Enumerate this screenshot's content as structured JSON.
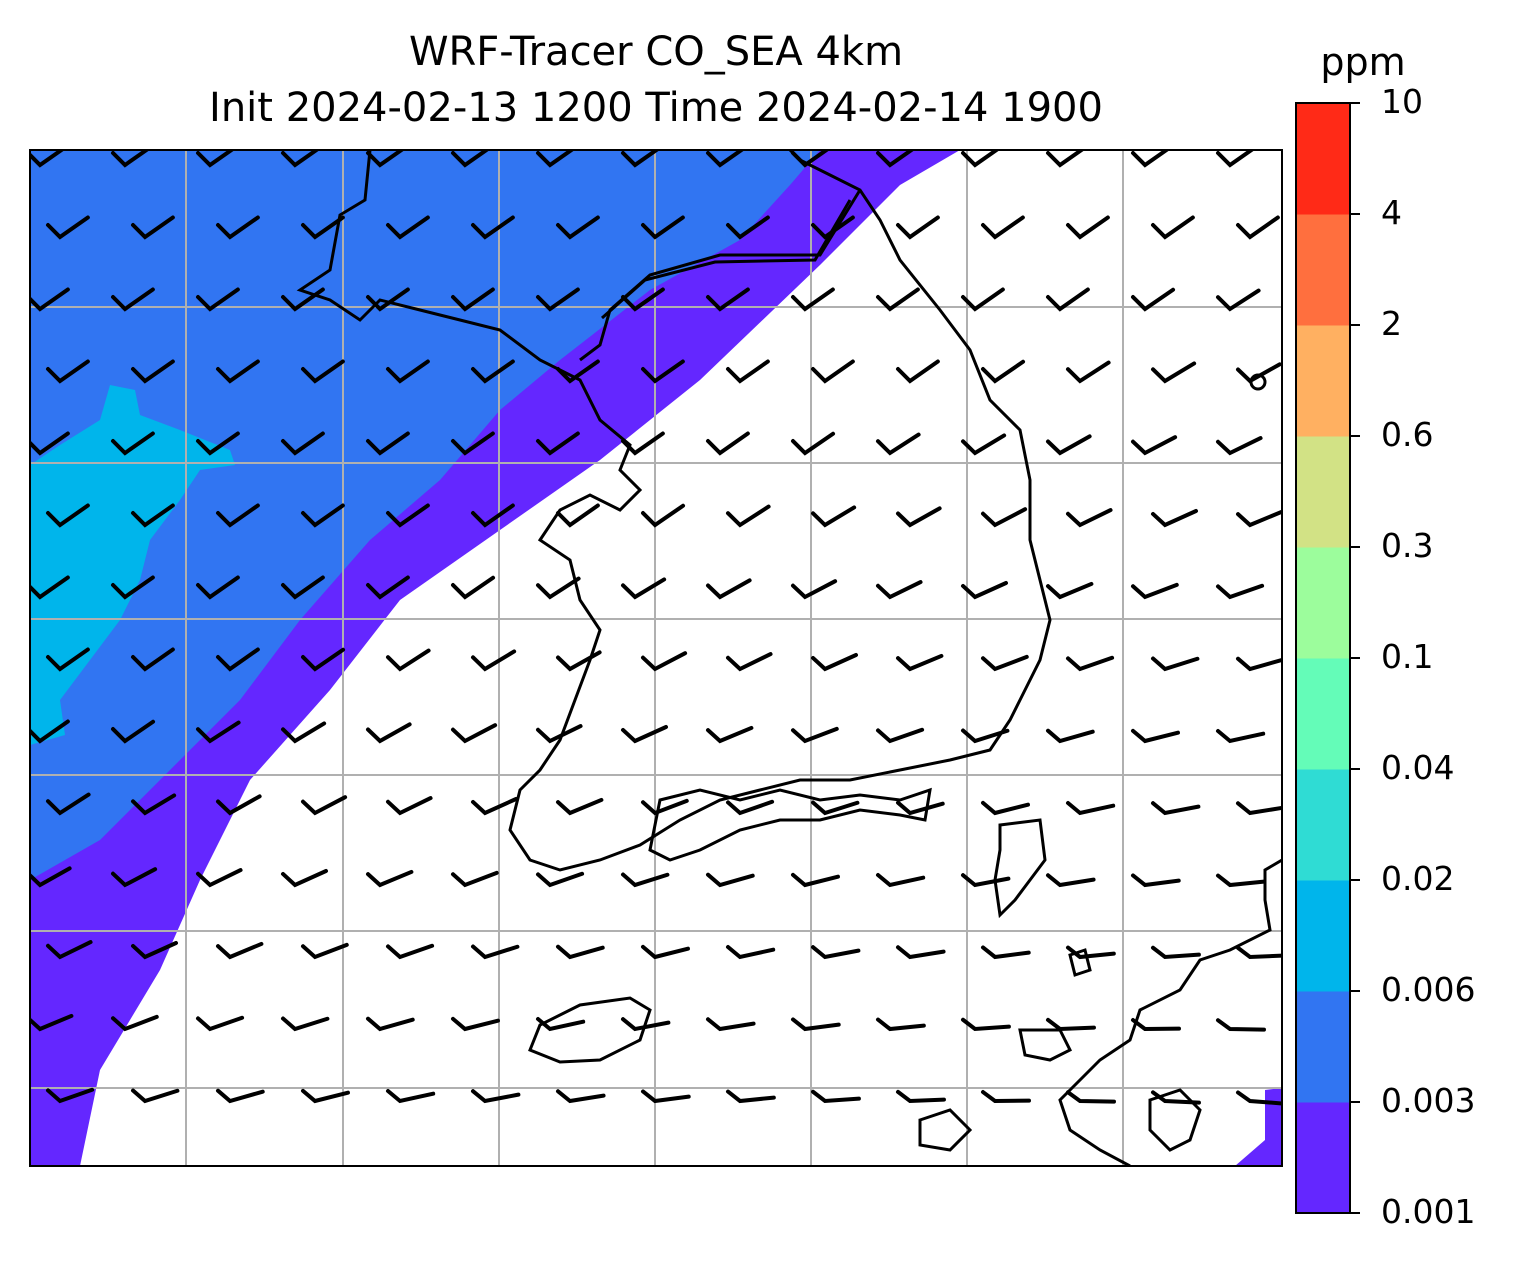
{
  "title_line1": "WRF-Tracer CO_SEA 4km",
  "title_line2": "Init 2024-02-13 1200 Time 2024-02-14 1900",
  "colorbar": {
    "unit": "ppm",
    "tick_labels": [
      "0.001",
      "0.003",
      "0.006",
      "0.02",
      "0.04",
      "0.1",
      "0.3",
      "0.6",
      "2",
      "4",
      "10"
    ],
    "colors": [
      "#6427ff",
      "#3175f2",
      "#00b5eb",
      "#2fdcd4",
      "#64fcb8",
      "#9cfd9c",
      "#d2e285",
      "#ffb061",
      "#ff6f3e",
      "#ff2a17"
    ]
  },
  "legend_colors": {
    "white_below_min": "#ffffff",
    "coastline": "#000000",
    "gridline": "#b0b0b0",
    "wind_barb": "#000000"
  }
}
